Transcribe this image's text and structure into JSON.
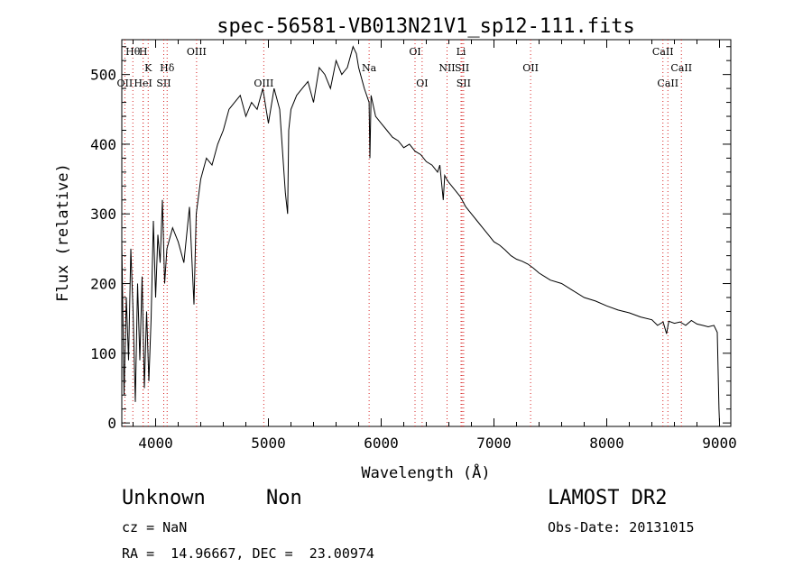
{
  "chart_data": {
    "type": "line",
    "title": "spec-56581-VB013N21V1_sp12-111.fits",
    "xlabel": "Wavelength (Å)",
    "ylabel": "Flux (relative)",
    "xlim": [
      3700,
      9100
    ],
    "ylim": [
      -5,
      550
    ],
    "x_ticks": [
      4000,
      5000,
      6000,
      7000,
      8000,
      9000
    ],
    "y_ticks": [
      0,
      100,
      200,
      300,
      400,
      500
    ],
    "grid": false,
    "series": [
      {
        "x": [
          3700,
          3720,
          3740,
          3760,
          3780,
          3800,
          3820,
          3840,
          3860,
          3880,
          3900,
          3920,
          3940,
          3960,
          3980,
          4000,
          4020,
          4040,
          4060,
          4080,
          4100,
          4150,
          4200,
          4250,
          4300,
          4340,
          4360,
          4400,
          4450,
          4500,
          4550,
          4600,
          4650,
          4700,
          4750,
          4800,
          4850,
          4900,
          4950,
          5000,
          5050,
          5100,
          5150,
          5170,
          5180,
          5200,
          5250,
          5300,
          5350,
          5400,
          5450,
          5500,
          5550,
          5600,
          5650,
          5700,
          5750,
          5780,
          5800,
          5850,
          5893,
          5900,
          5910,
          5950,
          6000,
          6050,
          6100,
          6150,
          6200,
          6250,
          6300,
          6350,
          6400,
          6450,
          6500,
          6520,
          6550,
          6563,
          6580,
          6600,
          6650,
          6700,
          6750,
          6800,
          6850,
          6900,
          6950,
          7000,
          7050,
          7100,
          7150,
          7200,
          7250,
          7300,
          7350,
          7400,
          7450,
          7500,
          7600,
          7700,
          7800,
          7900,
          8000,
          8100,
          8200,
          8300,
          8400,
          8450,
          8500,
          8530,
          8550,
          8600,
          8650,
          8700,
          8750,
          8800,
          8850,
          8900,
          8950,
          8980,
          8995,
          9000
        ],
        "y": [
          260,
          40,
          180,
          90,
          250,
          160,
          30,
          200,
          90,
          210,
          50,
          160,
          60,
          150,
          290,
          180,
          270,
          230,
          320,
          200,
          250,
          280,
          260,
          230,
          310,
          170,
          300,
          350,
          380,
          370,
          400,
          420,
          450,
          460,
          470,
          440,
          460,
          450,
          480,
          430,
          480,
          450,
          330,
          300,
          420,
          450,
          470,
          480,
          490,
          460,
          510,
          500,
          480,
          520,
          500,
          510,
          540,
          530,
          510,
          480,
          460,
          380,
          470,
          440,
          430,
          420,
          410,
          405,
          395,
          400,
          390,
          385,
          375,
          370,
          360,
          370,
          320,
          355,
          350,
          345,
          335,
          325,
          310,
          300,
          290,
          280,
          270,
          260,
          255,
          248,
          240,
          235,
          232,
          228,
          222,
          215,
          210,
          205,
          200,
          190,
          180,
          175,
          168,
          162,
          158,
          152,
          148,
          140,
          145,
          128,
          146,
          143,
          145,
          140,
          147,
          142,
          140,
          138,
          140,
          130,
          20,
          0
        ]
      }
    ],
    "lines_label_row": [
      "Hθ",
      "H",
      "K",
      "Hδ",
      "OIII",
      "OII",
      "HeI",
      "SII",
      "OIII",
      "Na",
      "OI",
      "OI",
      "Li",
      "NII",
      "SII",
      "SII",
      "OII",
      "CaII",
      "CaII",
      "CaII"
    ],
    "lines": [
      {
        "label": "Hθ",
        "x": 3798,
        "tier": 0
      },
      {
        "label": "H",
        "x": 3889,
        "tier": 0
      },
      {
        "label": "OIII",
        "x": 4363,
        "tier": 0
      },
      {
        "label": "OI",
        "x": 6300,
        "tier": 0
      },
      {
        "label": "Li",
        "x": 6708,
        "tier": 0
      },
      {
        "label": "CaII",
        "x": 8498,
        "tier": 0
      },
      {
        "label": "K",
        "x": 3934,
        "tier": 1
      },
      {
        "label": "Hδ",
        "x": 4102,
        "tier": 1
      },
      {
        "label": "Na",
        "x": 5893,
        "tier": 1
      },
      {
        "label": "NII",
        "x": 6584,
        "tier": 1
      },
      {
        "label": "SII",
        "x": 6717,
        "tier": 1
      },
      {
        "label": "OII",
        "x": 7325,
        "tier": 1
      },
      {
        "label": "CaII",
        "x": 8662,
        "tier": 1
      },
      {
        "label": "OII",
        "x": 3727,
        "tier": 2
      },
      {
        "label": "HeI",
        "x": 3889,
        "tier": 2
      },
      {
        "label": "SII",
        "x": 4072,
        "tier": 2
      },
      {
        "label": "OIII",
        "x": 4959,
        "tier": 2
      },
      {
        "label": "OI",
        "x": 6363,
        "tier": 2
      },
      {
        "label": "SII",
        "x": 6731,
        "tier": 2
      },
      {
        "label": "CaII",
        "x": 8542,
        "tier": 2
      }
    ]
  },
  "info": {
    "class": "Unknown",
    "subclass": "Non",
    "survey": "LAMOST DR2",
    "cz": "cz = NaN",
    "obs_date": "Obs-Date: 20131015",
    "coords": "RA =  14.96667, DEC =  23.00974"
  }
}
